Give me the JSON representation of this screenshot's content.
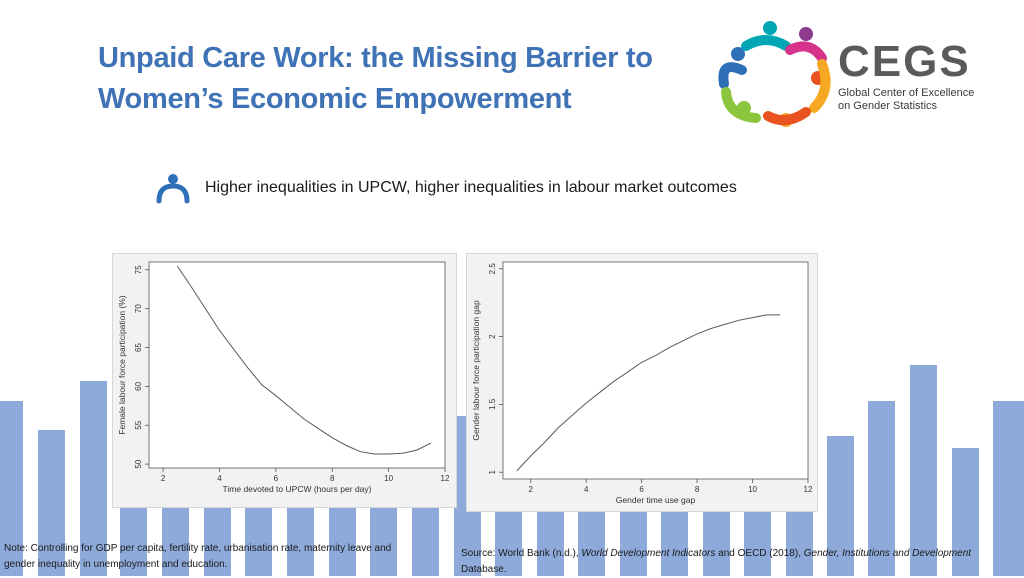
{
  "title": {
    "line1": "Unpaid Care Work: the Missing Barrier to",
    "line2": "Women’s Economic Empowerment"
  },
  "logo": {
    "name": "CEGS",
    "line1": "Global Center of Excellence",
    "line2": "on Gender Statistics",
    "colors": [
      "#2f6fb8",
      "#8cc63f",
      "#f7a823",
      "#e8531f",
      "#8e3b8f",
      "#d6348b",
      "#00a6b4"
    ]
  },
  "subtitle": "Higher inequalities in UPCW, higher inequalities in labour market outcomes",
  "background_bar_color": "#8eaadb",
  "chart_data": [
    {
      "type": "line",
      "xlabel": "Time devoted to UPCW (hours per day)",
      "ylabel": "Female labour force participation (%)",
      "xlim": [
        1.5,
        12
      ],
      "ylim": [
        49.5,
        76
      ],
      "xticks": [
        2,
        4,
        6,
        8,
        10,
        12
      ],
      "yticks": [
        50,
        55,
        60,
        65,
        70,
        75
      ],
      "grid": false,
      "series": [
        {
          "x": [
            2.5,
            3,
            3.5,
            4,
            4.5,
            5,
            5.5,
            6,
            6.5,
            7,
            7.5,
            8,
            8.5,
            9,
            9.5,
            10,
            10.5,
            11,
            11.5
          ],
          "values": [
            75.5,
            72.8,
            70.0,
            67.2,
            64.8,
            62.4,
            60.2,
            58.8,
            57.3,
            55.8,
            54.6,
            53.4,
            52.4,
            51.6,
            51.3,
            51.3,
            51.4,
            51.8,
            52.7
          ]
        }
      ]
    },
    {
      "type": "line",
      "xlabel": "Gender time use gap",
      "ylabel": "Gender labour force participation gap",
      "xlim": [
        1,
        12
      ],
      "ylim": [
        0.95,
        2.55
      ],
      "xticks": [
        2,
        4,
        6,
        8,
        10,
        12
      ],
      "yticks": [
        1,
        1.5,
        2,
        2.5
      ],
      "grid": false,
      "series": [
        {
          "x": [
            1.5,
            2,
            2.5,
            3,
            3.5,
            4,
            4.5,
            5,
            5.5,
            6,
            6.5,
            7,
            7.5,
            8,
            8.5,
            9,
            9.5,
            10,
            10.5,
            11
          ],
          "values": [
            1.01,
            1.12,
            1.22,
            1.33,
            1.42,
            1.51,
            1.59,
            1.67,
            1.74,
            1.81,
            1.86,
            1.92,
            1.97,
            2.02,
            2.06,
            2.09,
            2.12,
            2.14,
            2.16,
            2.16
          ]
        }
      ]
    }
  ],
  "note": {
    "line1": "Note: Controlling for GDP per capita, fertility rate, urbanisation rate, maternity leave and",
    "line2": "gender inequality in unemployment and education."
  },
  "source": {
    "prefix": "Source: World Bank (n.d.), ",
    "wdi": "World Development Indicators",
    "mid": " and OECD (2018), ",
    "gid": "Gender, Institutions and Development",
    "suffix": "Database."
  }
}
